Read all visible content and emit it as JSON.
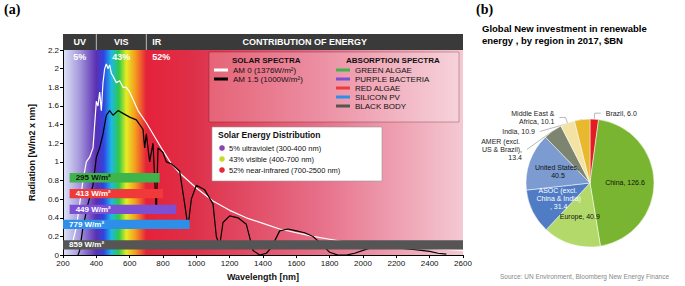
{
  "chart_data": [
    {
      "type": "line",
      "panel": "(a)",
      "x_label": "Wavelength [nm]",
      "y_label": "Radiation [W/m2 x nm]",
      "xlim": [
        200,
        2600
      ],
      "xticks": [
        200,
        400,
        600,
        800,
        1000,
        1200,
        1400,
        1600,
        1800,
        2000,
        2200,
        2400,
        2600
      ],
      "ylim": [
        0,
        2.2
      ],
      "yticks": [
        0,
        0.2,
        0.4,
        0.6,
        0.8,
        1,
        1.2,
        1.4,
        1.6,
        1.8,
        2,
        2.2
      ],
      "grid": false,
      "strip": {
        "title": "CONTRIBUTION OF ENERGY",
        "names": [
          "UV",
          "VIS",
          "IR"
        ],
        "ranges": [
          [
            200,
            400
          ],
          [
            400,
            700
          ],
          [
            700,
            2600
          ]
        ],
        "labels": [
          "5%",
          "43%",
          "52%"
        ]
      },
      "series_title": "SOLAR SPECTRA",
      "series": [
        {
          "name": "AM 0 (1376W/m²)",
          "color": "#ffffff",
          "x": [
            250,
            280,
            300,
            320,
            340,
            360,
            380,
            400,
            410,
            420,
            430,
            440,
            450,
            460,
            470,
            480,
            490,
            500,
            520,
            540,
            560,
            580,
            600,
            650,
            700,
            750,
            800,
            850,
            900,
            950,
            1000,
            1100,
            1200,
            1300,
            1400,
            1500,
            1600,
            1700,
            1800,
            1900,
            2000,
            2100,
            2200,
            2300,
            2400,
            2500,
            2600
          ],
          "values": [
            0.08,
            0.3,
            0.55,
            0.8,
            1.0,
            1.05,
            1.15,
            1.65,
            1.6,
            1.75,
            1.55,
            1.85,
            2.0,
            2.05,
            2.0,
            2.04,
            1.95,
            1.92,
            1.85,
            1.87,
            1.8,
            1.8,
            1.75,
            1.55,
            1.42,
            1.27,
            1.12,
            0.98,
            0.88,
            0.8,
            0.72,
            0.58,
            0.48,
            0.4,
            0.34,
            0.28,
            0.24,
            0.2,
            0.17,
            0.14,
            0.12,
            0.1,
            0.09,
            0.08,
            0.07,
            0.06,
            0.05
          ]
        },
        {
          "name": "AM 1.5 (1000W/m²)",
          "color": "#000000",
          "x": [
            290,
            300,
            320,
            350,
            380,
            400,
            420,
            440,
            460,
            480,
            500,
            530,
            560,
            600,
            640,
            680,
            690,
            700,
            720,
            740,
            760,
            770,
            800,
            820,
            850,
            900,
            930,
            950,
            970,
            1000,
            1050,
            1100,
            1120,
            1140,
            1160,
            1200,
            1250,
            1300,
            1340,
            1380,
            1420,
            1450,
            1500,
            1550,
            1600,
            1650,
            1700,
            1750,
            1800,
            1850,
            1900,
            1950,
            2000,
            2050,
            2100,
            2150,
            2200,
            2250,
            2300,
            2350,
            2400,
            2450,
            2500
          ],
          "values": [
            0,
            0.05,
            0.3,
            0.55,
            0.75,
            1.05,
            1.15,
            1.3,
            1.5,
            1.55,
            1.5,
            1.55,
            1.52,
            1.48,
            1.45,
            1.35,
            1.15,
            1.3,
            1.0,
            1.2,
            0.45,
            1.15,
            1.1,
            1.0,
            0.98,
            0.9,
            0.55,
            0.3,
            0.6,
            0.75,
            0.7,
            0.55,
            0.2,
            0.1,
            0.35,
            0.42,
            0.4,
            0.33,
            0.05,
            0.0,
            0.02,
            0.08,
            0.26,
            0.28,
            0.26,
            0.24,
            0.2,
            0.12,
            0.03,
            0.0,
            0.0,
            0.02,
            0.05,
            0.08,
            0.09,
            0.08,
            0.08,
            0.07,
            0.06,
            0.05,
            0.04,
            0.02,
            0.01
          ]
        }
      ],
      "bands_title": "ABSORPTION SPECTRA",
      "bands": [
        {
          "name": "GREEN ALGAE",
          "label": "295 W/m²",
          "x": [
            240,
            780
          ],
          "y": [
            0.78,
            0.88
          ],
          "color": "#3fb44b"
        },
        {
          "name": "PURPLE BACTERIA",
          "label": "449 W/m²",
          "x": [
            240,
            880
          ],
          "y": [
            0.44,
            0.54
          ],
          "color": "#7d4fd2"
        },
        {
          "name": "RED ALGAE",
          "label": "413 W/m²",
          "x": [
            240,
            800
          ],
          "y": [
            0.61,
            0.71
          ],
          "color": "#f03a3a"
        },
        {
          "name": "SILICON PV",
          "label": "779 W/m²",
          "x": [
            200,
            960
          ],
          "y": [
            0.28,
            0.38
          ],
          "color": "#2e8fe8"
        },
        {
          "name": "BLACK BODY",
          "label": "859 W/m²",
          "x": [
            200,
            2600
          ],
          "y": [
            0.06,
            0.16
          ],
          "color": "#555555"
        }
      ],
      "distribution": {
        "title": "Solar Energy Distribution",
        "items": [
          "5% ultraviolet (300-400 nm)",
          "43% visible (400-700 nm)",
          "52% near-infrared (700-2500 nm)"
        ],
        "colors": [
          "#8e44ad",
          "#c9d92a",
          "#e8283a"
        ]
      }
    },
    {
      "type": "pie",
      "panel": "(b)",
      "title": "Global New investment in renewable energy , by region in 2017, $BN",
      "source": "Source: UN Environment, Bloomberg New Energy Finance",
      "categories": [
        "Brazil",
        "China",
        "Europe",
        "ASOC (excl. China & India)",
        "United States",
        "AMER (excl. US & Brazil)",
        "Middle East & Africa",
        "India"
      ],
      "values": [
        6.0,
        126.6,
        40.9,
        31.4,
        40.5,
        13.4,
        10.1,
        10.9
      ],
      "value_labels": [
        "Brazil, 6.0",
        "China, 126.6",
        "Europe, 40.9",
        "ASOC (excl. China & India), 31.4",
        "United States, 40.5",
        "AMER (excl. US & Brazil), 13.4",
        "Middle East & Africa, 10.1",
        "India, 10.9"
      ],
      "colors": [
        "#e31b23",
        "#79b530",
        "#b3d96b",
        "#4f7cc4",
        "#7b9bd1",
        "#7d8570",
        "#f2e3a4",
        "#e8b92f"
      ],
      "data_labels": true
    }
  ]
}
